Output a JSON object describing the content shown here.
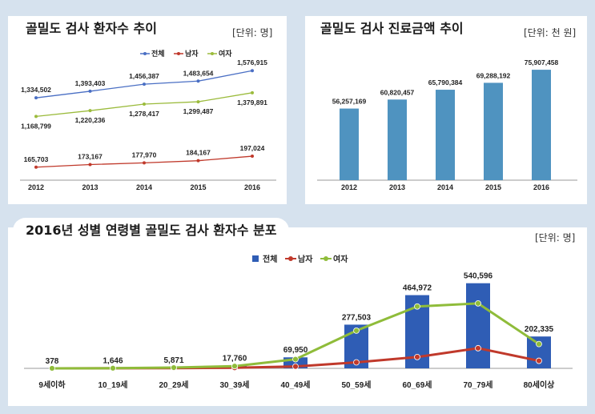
{
  "panels": {
    "patients_trend": {
      "title": "골밀도 검사 환자수 추이",
      "unit": "[단위: 명]"
    },
    "cost_trend": {
      "title": "골밀도 검사 진료금액 추이",
      "unit": "[단위: 천 원]"
    },
    "distribution": {
      "title": "2016년 성별 연령별 골밀도 검사 환자수 분포",
      "unit": "[단위: 명]"
    }
  },
  "chart_data": [
    {
      "type": "line",
      "categories": [
        "2012",
        "2013",
        "2014",
        "2015",
        "2016"
      ],
      "series": [
        {
          "name": "전체",
          "values": [
            1334502,
            1393403,
            1456387,
            1483654,
            1576915
          ],
          "labels": [
            "1,334,502",
            "1,393,403",
            "1,456,387",
            "1,483,654",
            "1,576,915"
          ],
          "color": "#4a6fc4"
        },
        {
          "name": "남자",
          "values": [
            165703,
            173167,
            177970,
            184167,
            197024
          ],
          "labels": [
            "165,703",
            "173,167",
            "177,970",
            "184,167",
            "197,024"
          ],
          "color": "#c0392b"
        },
        {
          "name": "여자",
          "values": [
            1168799,
            1220236,
            1278417,
            1299487,
            1379891
          ],
          "labels": [
            "1,168,799",
            "1,220,236",
            "1,278,417",
            "1,299,487",
            "1,379,891"
          ],
          "color": "#9bbb3c"
        }
      ],
      "legend_position": "top-right"
    },
    {
      "type": "bar",
      "categories": [
        "2012",
        "2013",
        "2014",
        "2015",
        "2016"
      ],
      "values": [
        56257169,
        60820457,
        65790384,
        69288192,
        75907458
      ],
      "labels": [
        "56,257,169",
        "60,820,457",
        "65,790,384",
        "69,288,192",
        "75,907,458"
      ],
      "color": "#4f93c0"
    },
    {
      "type": "bar+line",
      "categories": [
        "9세이하",
        "10_19세",
        "20_29세",
        "30_39세",
        "40_49세",
        "50_59세",
        "60_69세",
        "70_79세",
        "80세이상"
      ],
      "bars": {
        "name": "전체",
        "values": [
          378,
          1646,
          5871,
          17760,
          69950,
          277503,
          464972,
          540596,
          202335
        ],
        "labels": [
          "378",
          "1,646",
          "5,871",
          "17,760",
          "69,950",
          "277,503",
          "464,972",
          "540,596",
          "202,335"
        ],
        "color": "#2f5db5"
      },
      "series": [
        {
          "name": "남자",
          "values": [
            150,
            550,
            1100,
            3500,
            12000,
            38000,
            72000,
            128000,
            48000
          ],
          "color": "#c0392b"
        },
        {
          "name": "여자",
          "values": [
            228,
            1096,
            4771,
            14260,
            57950,
            239503,
            392972,
            412596,
            154335
          ],
          "color": "#8fbc3a"
        }
      ],
      "legend_position": "top-center"
    }
  ]
}
